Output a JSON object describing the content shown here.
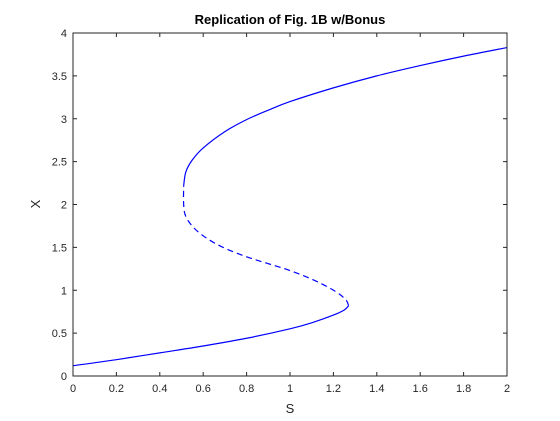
{
  "chart_data": {
    "type": "line",
    "title": "Replication of Fig. 1B w/Bonus",
    "xlabel": "S",
    "ylabel": "X",
    "xlim": [
      0,
      2
    ],
    "ylim": [
      0,
      4
    ],
    "xticks": [
      "0",
      "0.2",
      "0.4",
      "0.6",
      "0.8",
      "1",
      "1.2",
      "1.4",
      "1.6",
      "1.8",
      "2"
    ],
    "yticks": [
      "0",
      "0.5",
      "1",
      "1.5",
      "2",
      "2.5",
      "3",
      "3.5",
      "4"
    ],
    "grid": false,
    "legend": "none",
    "color": "#0000ff",
    "series": [
      {
        "style": "solid",
        "x": [
          0,
          0.2,
          0.4,
          0.6,
          0.8,
          1.0,
          1.1,
          1.2,
          1.25,
          1.27
        ],
        "y": [
          0.12,
          0.19,
          0.27,
          0.35,
          0.44,
          0.55,
          0.62,
          0.71,
          0.77,
          0.82
        ]
      },
      {
        "style": "dashed",
        "x": [
          1.27,
          1.26,
          1.23,
          1.18,
          1.1,
          1.0,
          0.9,
          0.8,
          0.7,
          0.62,
          0.56,
          0.52,
          0.51,
          0.51
        ],
        "y": [
          0.82,
          0.88,
          0.95,
          1.03,
          1.13,
          1.23,
          1.31,
          1.39,
          1.49,
          1.6,
          1.72,
          1.86,
          2.0,
          2.22
        ]
      },
      {
        "style": "solid",
        "x": [
          0.51,
          0.52,
          0.55,
          0.6,
          0.7,
          0.8,
          0.9,
          1.0,
          1.2,
          1.4,
          1.6,
          1.8,
          2.0
        ],
        "y": [
          2.22,
          2.38,
          2.52,
          2.66,
          2.85,
          2.99,
          3.1,
          3.2,
          3.36,
          3.5,
          3.62,
          3.73,
          3.83
        ]
      }
    ]
  }
}
